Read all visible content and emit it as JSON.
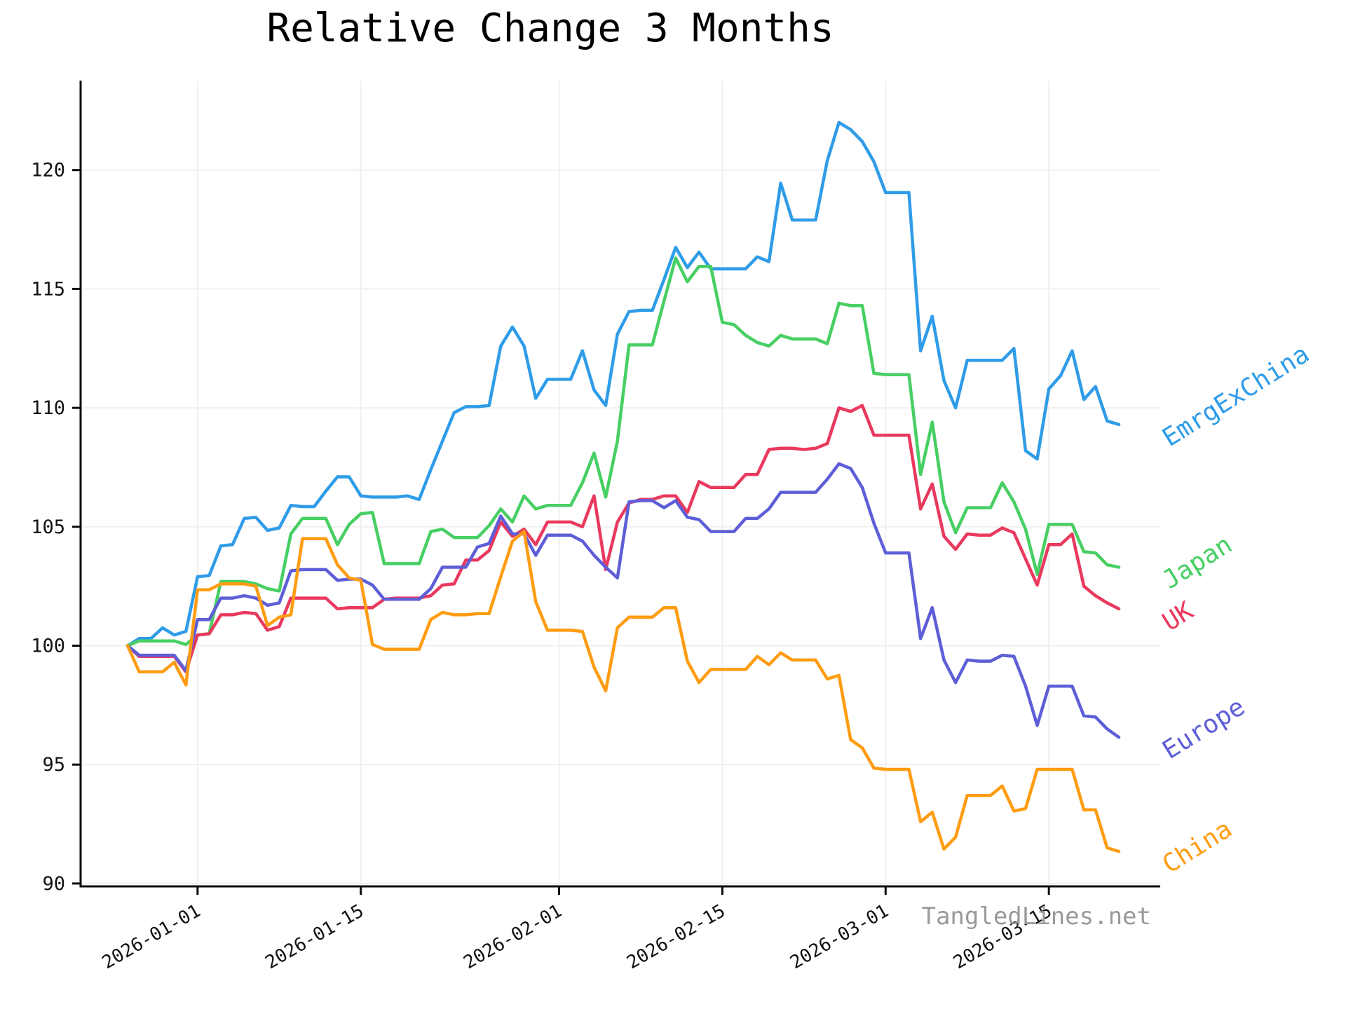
{
  "title": "Relative Change 3 Months",
  "watermark": "TangledLines.net",
  "colors": {
    "EmrgExChina": "#2f9ce8",
    "Japan": "#47cf63",
    "UK": "#e9395e",
    "Europe": "#5e5ed8",
    "China": "#ff9c12",
    "grid": "#f0f0f0",
    "spine": "#0a0a0a",
    "tick_label": "#111111",
    "watermark_gray": "#9a9a9a"
  },
  "chart_data": {
    "type": "line",
    "title": "Relative Change 3 Months",
    "xlabel": "",
    "ylabel": "",
    "ylim": [
      90,
      123
    ],
    "yticks": [
      90,
      95,
      100,
      105,
      110,
      115,
      120
    ],
    "grid": true,
    "legend_position": "right-of-line-ends",
    "xticks": [
      "2026-01-01",
      "2026-01-15",
      "2026-02-01",
      "2026-02-15",
      "2026-03-01",
      "2026-03-15"
    ],
    "x": [
      "2025-12-26",
      "2025-12-27",
      "2025-12-28",
      "2025-12-29",
      "2025-12-30",
      "2025-12-31",
      "2026-01-01",
      "2026-01-02",
      "2026-01-03",
      "2026-01-04",
      "2026-01-05",
      "2026-01-06",
      "2026-01-07",
      "2026-01-08",
      "2026-01-09",
      "2026-01-10",
      "2026-01-11",
      "2026-01-12",
      "2026-01-13",
      "2026-01-14",
      "2026-01-15",
      "2026-01-16",
      "2026-01-17",
      "2026-01-18",
      "2026-01-19",
      "2026-01-20",
      "2026-01-21",
      "2026-01-22",
      "2026-01-23",
      "2026-01-24",
      "2026-01-25",
      "2026-01-26",
      "2026-01-27",
      "2026-01-28",
      "2026-01-29",
      "2026-01-30",
      "2026-01-31",
      "2026-02-01",
      "2026-02-02",
      "2026-02-03",
      "2026-02-04",
      "2026-02-05",
      "2026-02-06",
      "2026-02-07",
      "2026-02-08",
      "2026-02-09",
      "2026-02-10",
      "2026-02-11",
      "2026-02-12",
      "2026-02-13",
      "2026-02-14",
      "2026-02-15",
      "2026-02-16",
      "2026-02-17",
      "2026-02-18",
      "2026-02-19",
      "2026-02-20",
      "2026-02-21",
      "2026-02-22",
      "2026-02-23",
      "2026-02-24",
      "2026-02-25",
      "2026-02-26",
      "2026-02-27",
      "2026-02-28",
      "2026-03-01",
      "2026-03-02",
      "2026-03-03",
      "2026-03-04",
      "2026-03-05",
      "2026-03-06",
      "2026-03-07",
      "2026-03-08",
      "2026-03-09",
      "2026-03-10",
      "2026-03-11",
      "2026-03-12",
      "2026-03-13",
      "2026-03-14",
      "2026-03-15",
      "2026-03-16",
      "2026-03-17",
      "2026-03-18",
      "2026-03-19",
      "2026-03-20",
      "2026-03-21"
    ],
    "series": [
      {
        "name": "EmrgExChina",
        "color": "#2f9ce8",
        "values": [
          100.0,
          100.3,
          100.3,
          100.75,
          100.45,
          100.6,
          102.9,
          102.95,
          104.2,
          104.25,
          105.35,
          105.4,
          104.85,
          104.95,
          105.9,
          105.85,
          105.85,
          106.5,
          107.1,
          107.1,
          106.3,
          106.25,
          106.25,
          106.25,
          106.3,
          106.15,
          107.4,
          108.6,
          109.8,
          110.05,
          110.05,
          110.1,
          112.6,
          113.4,
          112.6,
          110.4,
          111.2,
          111.2,
          111.2,
          112.4,
          110.75,
          110.1,
          113.1,
          114.05,
          114.1,
          114.1,
          115.4,
          116.75,
          115.9,
          116.55,
          115.85,
          115.85,
          115.85,
          115.85,
          116.35,
          116.15,
          119.45,
          117.9,
          117.9,
          117.9,
          120.4,
          122.0,
          121.7,
          121.2,
          120.35,
          119.05,
          119.05,
          119.05,
          112.4,
          113.85,
          111.15,
          110.0,
          112.0,
          112.0,
          112.0,
          112.0,
          112.5,
          108.2,
          107.85,
          110.8,
          111.35,
          112.4,
          110.35,
          110.9,
          109.45,
          109.3
        ]
      },
      {
        "name": "Japan",
        "color": "#47cf63",
        "values": [
          100.0,
          100.2,
          100.2,
          100.2,
          100.2,
          100.05,
          100.45,
          100.5,
          102.7,
          102.7,
          102.7,
          102.6,
          102.4,
          102.3,
          104.7,
          105.35,
          105.35,
          105.35,
          104.25,
          105.1,
          105.55,
          105.6,
          103.45,
          103.45,
          103.45,
          103.45,
          104.8,
          104.9,
          104.55,
          104.55,
          104.55,
          105.05,
          105.75,
          105.2,
          106.3,
          105.75,
          105.9,
          105.9,
          105.9,
          106.85,
          108.1,
          106.25,
          108.6,
          112.65,
          112.65,
          112.65,
          114.5,
          116.3,
          115.3,
          115.95,
          115.95,
          113.6,
          113.5,
          113.05,
          112.75,
          112.6,
          113.05,
          112.9,
          112.9,
          112.9,
          112.7,
          114.4,
          114.3,
          114.3,
          111.45,
          111.4,
          111.4,
          111.4,
          107.2,
          109.4,
          106.05,
          104.75,
          105.8,
          105.8,
          105.8,
          106.85,
          106.05,
          104.9,
          103.0,
          105.1,
          105.1,
          105.1,
          103.95,
          103.9,
          103.4,
          103.3
        ]
      },
      {
        "name": "UK",
        "color": "#e9395e",
        "values": [
          100.0,
          99.55,
          99.55,
          99.55,
          99.55,
          98.9,
          100.45,
          100.5,
          101.3,
          101.3,
          101.4,
          101.35,
          100.65,
          100.8,
          102.0,
          102.0,
          102.0,
          102.0,
          101.55,
          101.6,
          101.6,
          101.6,
          101.95,
          102.0,
          102.0,
          102.0,
          102.1,
          102.55,
          102.6,
          103.6,
          103.6,
          104.0,
          105.2,
          104.6,
          104.9,
          104.25,
          105.2,
          105.2,
          105.2,
          105.0,
          106.3,
          103.2,
          105.2,
          106.0,
          106.15,
          106.15,
          106.3,
          106.3,
          105.6,
          106.9,
          106.65,
          106.65,
          106.65,
          107.2,
          107.2,
          108.25,
          108.3,
          108.3,
          108.25,
          108.3,
          108.5,
          110.0,
          109.85,
          110.1,
          108.85,
          108.85,
          108.85,
          108.85,
          105.75,
          106.8,
          104.6,
          104.05,
          104.7,
          104.65,
          104.65,
          104.95,
          104.75,
          103.65,
          102.55,
          104.25,
          104.25,
          104.7,
          102.5,
          102.1,
          101.8,
          101.55
        ]
      },
      {
        "name": "Europe",
        "color": "#5e5ed8",
        "values": [
          100.0,
          99.6,
          99.6,
          99.6,
          99.6,
          98.95,
          101.1,
          101.1,
          102.0,
          102.0,
          102.1,
          102.0,
          101.7,
          101.8,
          103.15,
          103.2,
          103.2,
          103.2,
          102.75,
          102.8,
          102.8,
          102.55,
          101.95,
          101.95,
          101.95,
          101.95,
          102.4,
          103.3,
          103.3,
          103.3,
          104.15,
          104.3,
          105.45,
          104.7,
          104.7,
          103.8,
          104.65,
          104.65,
          104.65,
          104.4,
          103.8,
          103.3,
          102.85,
          106.05,
          106.1,
          106.1,
          105.8,
          106.1,
          105.4,
          105.3,
          104.8,
          104.8,
          104.8,
          105.35,
          105.35,
          105.75,
          106.45,
          106.45,
          106.45,
          106.45,
          107.0,
          107.65,
          107.45,
          106.65,
          105.15,
          103.9,
          103.9,
          103.9,
          100.3,
          101.6,
          99.4,
          98.45,
          99.4,
          99.35,
          99.35,
          99.6,
          99.55,
          98.3,
          96.65,
          98.3,
          98.3,
          98.3,
          97.05,
          97.0,
          96.5,
          96.15
        ]
      },
      {
        "name": "China",
        "color": "#ff9c12",
        "values": [
          100.0,
          98.9,
          98.9,
          98.9,
          99.3,
          98.35,
          102.35,
          102.35,
          102.6,
          102.6,
          102.6,
          102.5,
          100.85,
          101.2,
          101.3,
          104.5,
          104.5,
          104.5,
          103.4,
          102.85,
          102.75,
          100.05,
          99.85,
          99.85,
          99.85,
          99.85,
          101.1,
          101.4,
          101.3,
          101.3,
          101.35,
          101.35,
          102.9,
          104.4,
          104.8,
          101.85,
          100.65,
          100.65,
          100.65,
          100.6,
          99.1,
          98.1,
          100.75,
          101.2,
          101.2,
          101.2,
          101.6,
          101.6,
          99.35,
          98.45,
          99.0,
          99.0,
          99.0,
          99.0,
          99.55,
          99.2,
          99.7,
          99.4,
          99.4,
          99.4,
          98.6,
          98.75,
          96.05,
          95.7,
          94.85,
          94.8,
          94.8,
          94.8,
          92.6,
          93.0,
          91.45,
          91.95,
          93.7,
          93.7,
          93.7,
          94.1,
          93.05,
          93.15,
          94.8,
          94.8,
          94.8,
          94.8,
          93.1,
          93.1,
          91.5,
          91.35
        ]
      }
    ]
  }
}
